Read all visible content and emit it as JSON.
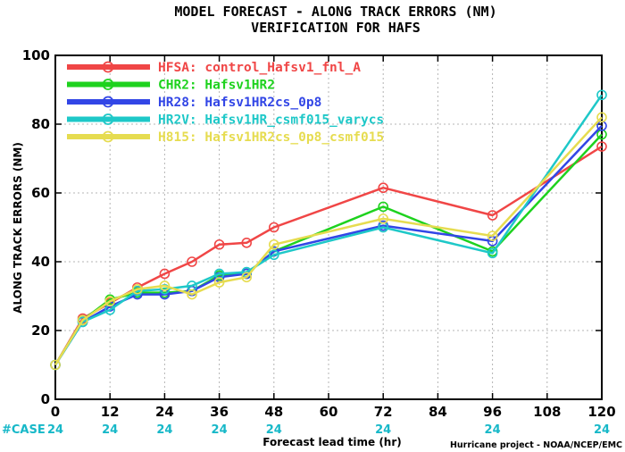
{
  "chart_data": {
    "type": "line",
    "title": "MODEL FORECAST - ALONG TRACK ERRORS (NM)",
    "subtitle": "VERIFICATION FOR HAFS",
    "xlabel": "Forecast lead time (hr)",
    "ylabel": "ALONG TRACK ERRORS (NM)",
    "xlim": [
      0,
      120
    ],
    "ylim": [
      0,
      100
    ],
    "x_ticks": [
      0,
      12,
      24,
      36,
      48,
      60,
      72,
      84,
      96,
      108,
      120
    ],
    "y_ticks": [
      0,
      20,
      40,
      60,
      80,
      100
    ],
    "grid": true,
    "legend_position": "top-left",
    "case_label": "#CASE",
    "case_x": [
      0,
      12,
      24,
      36,
      48,
      72,
      96,
      120
    ],
    "case_counts": [
      "24",
      "24",
      "24",
      "24",
      "24",
      "24",
      "24",
      "24"
    ],
    "credit": "Hurricane project - NOAA/NCEP/EMC",
    "series": [
      {
        "name": "HFSA: control_Hafsv1_fnl_A",
        "color": "#f04646",
        "x": [
          0,
          6,
          12,
          18,
          24,
          30,
          36,
          42,
          48,
          72,
          96,
          120
        ],
        "values": [
          10,
          23.5,
          28,
          32.5,
          36.5,
          40,
          45,
          45.5,
          50,
          61.5,
          53.5,
          73.5
        ]
      },
      {
        "name": "CHR2: Hafsv1HR2",
        "color": "#1ed21e",
        "x": [
          0,
          6,
          12,
          18,
          24,
          30,
          36,
          42,
          48,
          72,
          96,
          120
        ],
        "values": [
          10,
          23,
          29,
          31,
          31,
          31.5,
          36,
          36.5,
          43,
          56,
          43,
          77
        ]
      },
      {
        "name": "HR28: Hafsv1HR2cs_0p8",
        "color": "#3246e6",
        "x": [
          0,
          6,
          12,
          18,
          24,
          30,
          36,
          42,
          48,
          72,
          96,
          120
        ],
        "values": [
          10,
          22.5,
          27,
          30.5,
          30.5,
          31.5,
          35.5,
          36.5,
          43,
          50.5,
          46,
          79.5
        ]
      },
      {
        "name": "HR2V: Hafsv1HR_csmf015_varycs",
        "color": "#1ec8c8",
        "x": [
          0,
          6,
          12,
          18,
          24,
          30,
          36,
          42,
          48,
          72,
          96,
          120
        ],
        "values": [
          10,
          22.5,
          26,
          31.5,
          32,
          33,
          36.5,
          37,
          42,
          50,
          42.5,
          88.5
        ]
      },
      {
        "name": "H815: Hafsv1HR2cs_0p8_csmf015",
        "color": "#e6dc50",
        "x": [
          0,
          6,
          12,
          18,
          24,
          30,
          36,
          42,
          48,
          72,
          96,
          120
        ],
        "values": [
          10,
          23,
          28.5,
          32,
          33,
          30.5,
          34,
          35.5,
          45,
          52.5,
          47.5,
          82
        ]
      }
    ]
  }
}
